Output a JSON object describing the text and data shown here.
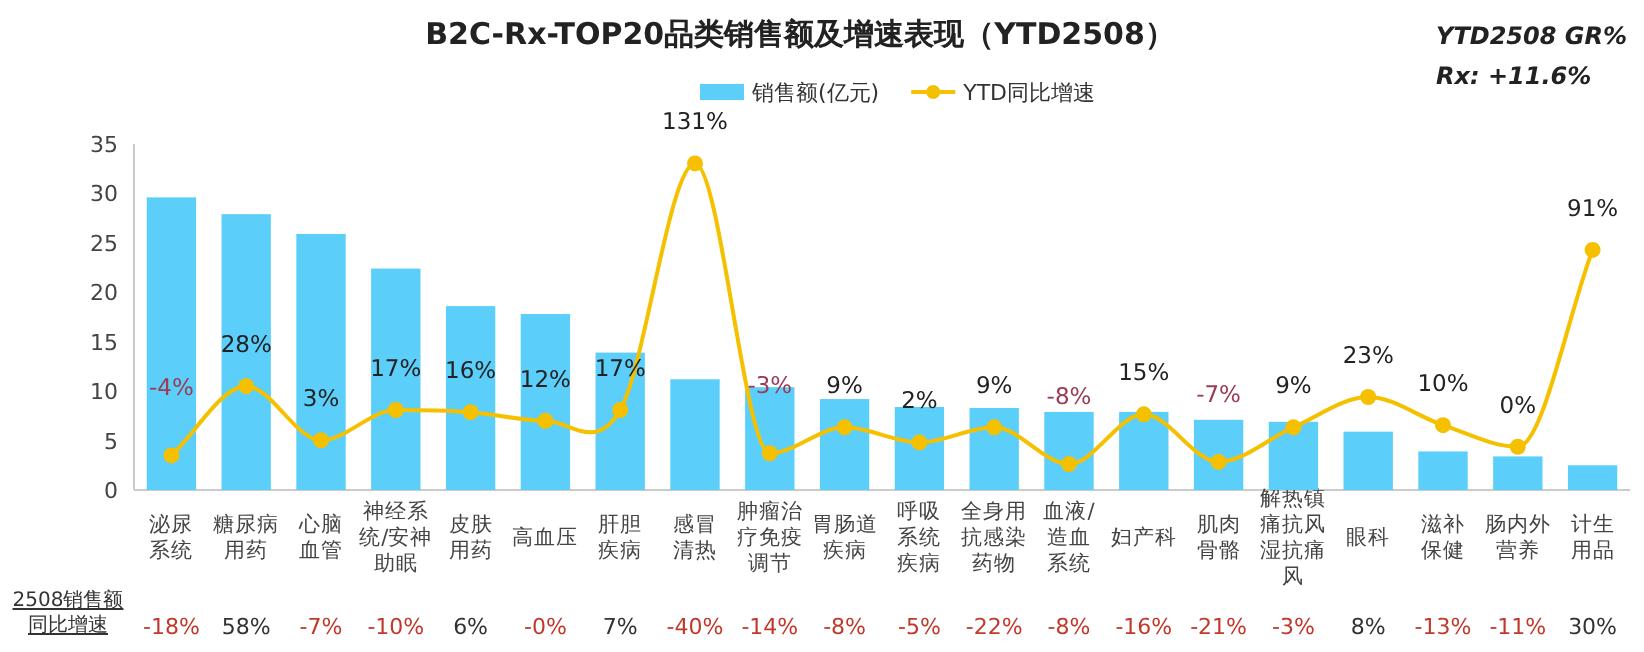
{
  "chart_data": {
    "type": "bar",
    "title": "B2C-Rx-TOP20品类销售额及增速表现（YTD2508）",
    "categories": [
      "泌尿系统",
      "糖尿病用药",
      "心脑血管",
      "神经系统/安神助眠",
      "皮肤用药",
      "高血压",
      "肝胆疾病",
      "感冒清热",
      "肿瘤治疗免疫调节",
      "胃肠道疾病",
      "呼吸系统疾病",
      "全身用抗感染药物",
      "血液/造血系统",
      "妇产科",
      "肌肉骨骼",
      "解热镇痛抗风湿抗痛风",
      "眼科",
      "滋补保健",
      "肠内外营养",
      "计生用品"
    ],
    "series": [
      {
        "name": "销售额(亿元)",
        "color": "#5bcffa",
        "values": [
          29.6,
          27.9,
          25.9,
          22.4,
          18.6,
          17.8,
          13.9,
          11.2,
          10.4,
          9.2,
          8.4,
          8.3,
          7.9,
          7.9,
          7.1,
          6.9,
          5.9,
          3.9,
          3.4,
          2.5
        ]
      },
      {
        "name": "YTD同比增速",
        "type": "line",
        "axis": "y2",
        "color": "#f5c000",
        "values": [
          -4,
          28,
          3,
          17,
          16,
          12,
          17,
          131,
          -3,
          9,
          2,
          9,
          -8,
          15,
          -7,
          9,
          23,
          10,
          0,
          91
        ],
        "value_labels": [
          "-4%",
          "28%",
          "3%",
          "17%",
          "16%",
          "12%",
          "17%",
          "131%",
          "-3%",
          "9%",
          "2%",
          "9%",
          "-8%",
          "15%",
          "-7%",
          "9%",
          "23%",
          "10%",
          "0%",
          "91%"
        ]
      }
    ],
    "ylim": [
      0,
      35
    ],
    "yticks": [
      0,
      5,
      10,
      15,
      20,
      25,
      30,
      35
    ],
    "y2lim": [
      -20,
      140
    ],
    "marker": "circle",
    "legend": "top",
    "grid": false,
    "annotations": [
      "YTD2508 GR%",
      "Rx: +11.6%",
      "2508销售额同比增速",
      "-18%",
      "58%",
      "-7%",
      "-10%",
      "6%",
      "-0%",
      "7%",
      "-40%",
      "-14%",
      "-8%",
      "-5%",
      "-22%",
      "-8%",
      "-16%",
      "-21%",
      "-3%",
      "8%",
      "-13%",
      "-11%",
      "30%"
    ]
  }
}
